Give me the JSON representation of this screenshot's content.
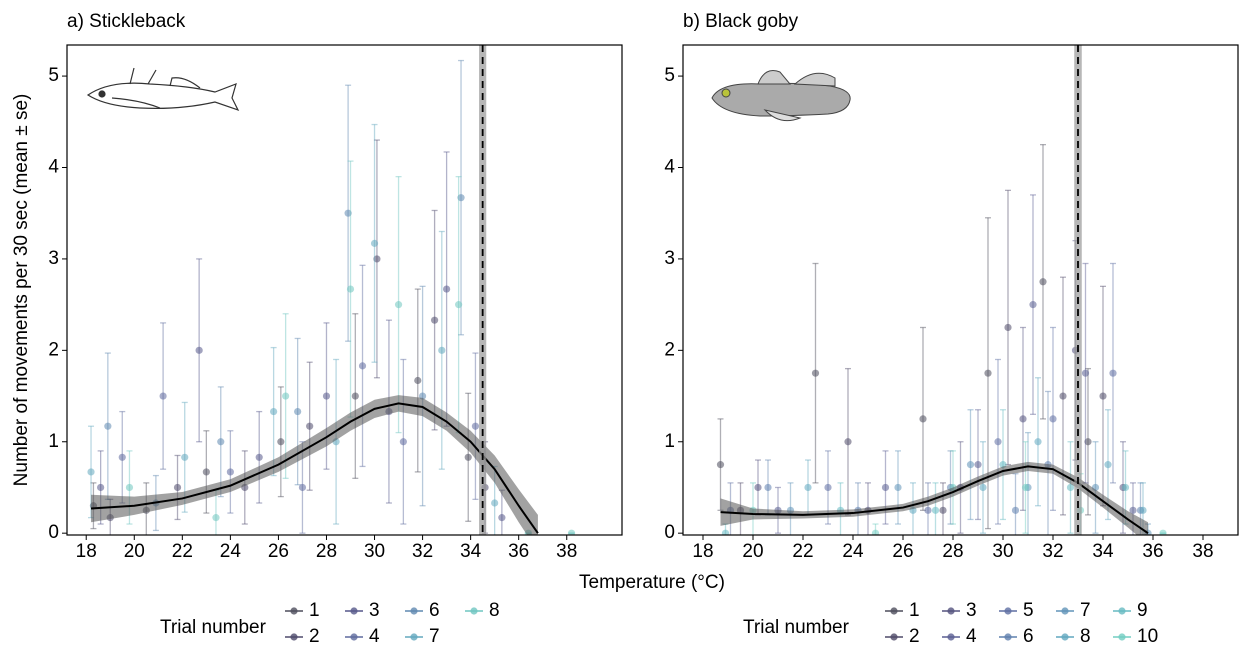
{
  "xlabel": "Temperature (°C)",
  "ylabel": "Number of movements per 30 sec (mean ± se)",
  "chart_data": [
    {
      "type": "scatter",
      "title": "a) Stickleback",
      "xlim": [
        17.2,
        40.3
      ],
      "xticks": [
        18,
        20,
        22,
        24,
        26,
        28,
        30,
        32,
        34,
        36,
        38
      ],
      "ylim": [
        -0.02,
        5.34
      ],
      "yticks": [
        0,
        1,
        2,
        3,
        4,
        5
      ],
      "legend_title": "Trial number",
      "threshold": 34.5,
      "threshold_band": [
        34.35,
        34.65
      ],
      "smooth": {
        "x": [
          18.2,
          20,
          22,
          24,
          26,
          28,
          29,
          30,
          31,
          32,
          33,
          34,
          35,
          36,
          36.8
        ],
        "values": [
          0.27,
          0.3,
          0.38,
          0.52,
          0.75,
          1.05,
          1.22,
          1.36,
          1.42,
          1.38,
          1.22,
          1.0,
          0.7,
          0.3,
          0
        ],
        "lower": [
          0.12,
          0.2,
          0.31,
          0.45,
          0.67,
          0.95,
          1.12,
          1.26,
          1.33,
          1.28,
          1.12,
          0.88,
          0.55,
          0.12,
          -0.2
        ],
        "upper": [
          0.42,
          0.4,
          0.45,
          0.59,
          0.83,
          1.15,
          1.32,
          1.46,
          1.51,
          1.48,
          1.32,
          1.12,
          0.85,
          0.48,
          0.2
        ]
      },
      "series": [
        {
          "name": "1",
          "color": "#4d4d5c",
          "x": [
            18.3,
            20.5,
            23.0,
            26.1,
            29.2,
            31.8,
            33.9
          ],
          "values": [
            0.3,
            0.25,
            0.67,
            1.0,
            1.5,
            1.67,
            0.83
          ],
          "errors": [
            0.25,
            0.3,
            0.45,
            0.6,
            0.9,
            1.0,
            0.7
          ]
        },
        {
          "name": "2",
          "color": "#4e4a6c",
          "x": [
            19.0,
            21.8,
            24.6,
            27.3,
            30.1,
            32.5,
            34.6
          ],
          "values": [
            0.17,
            0.5,
            0.5,
            1.17,
            3.0,
            2.33,
            0.5
          ],
          "errors": [
            0.2,
            0.35,
            0.4,
            0.7,
            1.3,
            1.2,
            0.5
          ]
        },
        {
          "name": "3",
          "color": "#55578a",
          "x": [
            18.6,
            22.7,
            25.2,
            28.0,
            30.6,
            33.0,
            35.3
          ],
          "values": [
            0.5,
            2.0,
            0.83,
            1.5,
            1.33,
            2.67,
            0.17
          ],
          "errors": [
            0.4,
            1.0,
            0.5,
            0.8,
            1.0,
            1.5,
            0.3
          ]
        },
        {
          "name": "4",
          "color": "#5e6a9e",
          "x": [
            19.5,
            21.2,
            24.0,
            27.0,
            29.5,
            31.2,
            34.2
          ],
          "values": [
            0.83,
            1.5,
            0.67,
            0.5,
            1.83,
            1.0,
            1.17
          ],
          "errors": [
            0.5,
            0.8,
            0.45,
            0.5,
            1.1,
            0.9,
            0.8
          ]
        },
        {
          "name": "6",
          "color": "#5f88b0",
          "x": [
            18.9,
            20.9,
            23.6,
            26.8,
            28.9,
            32.0,
            33.6
          ],
          "values": [
            1.17,
            0.33,
            1.0,
            1.33,
            3.5,
            1.5,
            3.67
          ],
          "errors": [
            0.8,
            0.3,
            0.6,
            0.8,
            1.4,
            1.2,
            1.5
          ]
        },
        {
          "name": "7",
          "color": "#63a8be",
          "x": [
            18.2,
            22.1,
            25.8,
            28.4,
            30.0,
            32.8,
            35.0
          ],
          "values": [
            0.67,
            0.83,
            1.33,
            1.0,
            3.17,
            2.0,
            0.33
          ],
          "errors": [
            0.5,
            0.6,
            0.7,
            0.9,
            1.3,
            1.3,
            0.4
          ]
        },
        {
          "name": "8",
          "color": "#6fc6c0",
          "x": [
            19.8,
            23.4,
            26.3,
            29.0,
            31.0,
            33.5,
            36.4,
            38.2
          ],
          "values": [
            0.5,
            0.17,
            1.5,
            2.67,
            2.5,
            2.5,
            0,
            0
          ],
          "errors": [
            0.4,
            0.3,
            0.9,
            1.4,
            1.4,
            1.4,
            0,
            0
          ]
        }
      ]
    },
    {
      "type": "scatter",
      "title": "b) Black goby",
      "xlim": [
        17.2,
        39.4
      ],
      "xticks": [
        18,
        20,
        22,
        24,
        26,
        28,
        30,
        32,
        34,
        36,
        38
      ],
      "ylim": [
        -0.02,
        5.34
      ],
      "yticks": [
        0,
        1,
        2,
        3,
        4,
        5
      ],
      "legend_title": "Trial number",
      "threshold": 33.0,
      "threshold_band": [
        32.85,
        33.15
      ],
      "smooth": {
        "x": [
          18.7,
          20,
          22,
          24,
          26,
          27,
          28,
          29,
          30,
          31,
          32,
          33,
          34,
          35,
          35.8
        ],
        "values": [
          0.23,
          0.21,
          0.2,
          0.22,
          0.28,
          0.35,
          0.45,
          0.57,
          0.68,
          0.73,
          0.7,
          0.55,
          0.35,
          0.15,
          0
        ],
        "lower": [
          0.08,
          0.15,
          0.16,
          0.18,
          0.24,
          0.3,
          0.4,
          0.52,
          0.63,
          0.68,
          0.65,
          0.49,
          0.28,
          0.06,
          -0.12
        ],
        "upper": [
          0.38,
          0.27,
          0.24,
          0.26,
          0.32,
          0.4,
          0.5,
          0.62,
          0.73,
          0.78,
          0.75,
          0.61,
          0.42,
          0.24,
          0.12
        ]
      },
      "series": [
        {
          "name": "1",
          "color": "#4d4d5c",
          "x": [
            18.7,
            22.5,
            26.8,
            29.4,
            31.6,
            33.4
          ],
          "values": [
            0.75,
            1.75,
            1.25,
            1.75,
            2.75,
            1.0
          ],
          "errors": [
            0.5,
            1.2,
            1.0,
            1.7,
            1.5,
            0.8
          ]
        },
        {
          "name": "2",
          "color": "#4f4a68",
          "x": [
            19.5,
            23.8,
            27.6,
            30.2,
            32.4,
            34.0
          ],
          "values": [
            0.25,
            1.0,
            0.25,
            2.25,
            1.5,
            1.5
          ],
          "errors": [
            0.3,
            0.8,
            0.3,
            1.5,
            1.3,
            1.2
          ]
        },
        {
          "name": "3",
          "color": "#54527e",
          "x": [
            20.2,
            24.6,
            28.3,
            30.8,
            32.9,
            34.8
          ],
          "values": [
            0.5,
            0.25,
            0.5,
            1.25,
            2.0,
            0.5
          ],
          "errors": [
            0.3,
            0.3,
            0.5,
            1.0,
            1.2,
            0.5
          ]
        },
        {
          "name": "4",
          "color": "#5a5e92",
          "x": [
            21.0,
            25.3,
            29.0,
            31.2,
            33.3,
            35.2
          ],
          "values": [
            0.25,
            0.5,
            0.75,
            2.5,
            1.75,
            0.25
          ],
          "errors": [
            0.25,
            0.4,
            0.6,
            1.2,
            1.2,
            0.3
          ]
        },
        {
          "name": "5",
          "color": "#5e6ea2",
          "x": [
            19.1,
            23.0,
            27.0,
            29.8,
            32.0,
            34.4
          ],
          "values": [
            0.25,
            0.5,
            0.25,
            1.0,
            1.25,
            1.75
          ],
          "errors": [
            0.3,
            0.4,
            0.3,
            0.9,
            1.0,
            1.2
          ]
        },
        {
          "name": "6",
          "color": "#5f80ae",
          "x": [
            20.6,
            24.2,
            27.9,
            30.5,
            31.8,
            35.5
          ],
          "values": [
            0.5,
            0.25,
            0.5,
            0.25,
            0.75,
            0.25
          ],
          "errors": [
            0.3,
            0.3,
            0.4,
            0.4,
            0.8,
            0.3
          ]
        },
        {
          "name": "7",
          "color": "#6093b8",
          "x": [
            21.5,
            25.8,
            28.7,
            31.0,
            33.7,
            35.8
          ],
          "values": [
            0.25,
            0.5,
            0.75,
            0.5,
            0.5,
            0.0
          ],
          "errors": [
            0.3,
            0.4,
            0.6,
            0.6,
            0.5,
            0.1
          ]
        },
        {
          "name": "8",
          "color": "#61a7bf",
          "x": [
            22.2,
            26.4,
            29.2,
            31.4,
            34.2,
            35.6
          ],
          "values": [
            0.5,
            0.25,
            0.5,
            1.0,
            0.75,
            0.25
          ],
          "errors": [
            0.3,
            0.3,
            0.5,
            0.7,
            0.6,
            0.3
          ]
        },
        {
          "name": "9",
          "color": "#66bac2",
          "x": [
            18.9,
            23.5,
            27.3,
            30.0,
            32.7,
            34.9
          ],
          "values": [
            0.0,
            0.25,
            0.25,
            0.75,
            0.5,
            0.5
          ],
          "errors": [
            0.1,
            0.3,
            0.3,
            0.6,
            0.5,
            0.4
          ]
        },
        {
          "name": "10",
          "color": "#72cdc2",
          "x": [
            20.0,
            24.9,
            28.0,
            30.9,
            33.1,
            36.4
          ],
          "values": [
            0.25,
            0.0,
            0.5,
            0.5,
            0.25,
            0.0
          ],
          "errors": [
            0.3,
            0.1,
            0.4,
            0.5,
            0.4,
            0.0
          ]
        }
      ]
    }
  ]
}
